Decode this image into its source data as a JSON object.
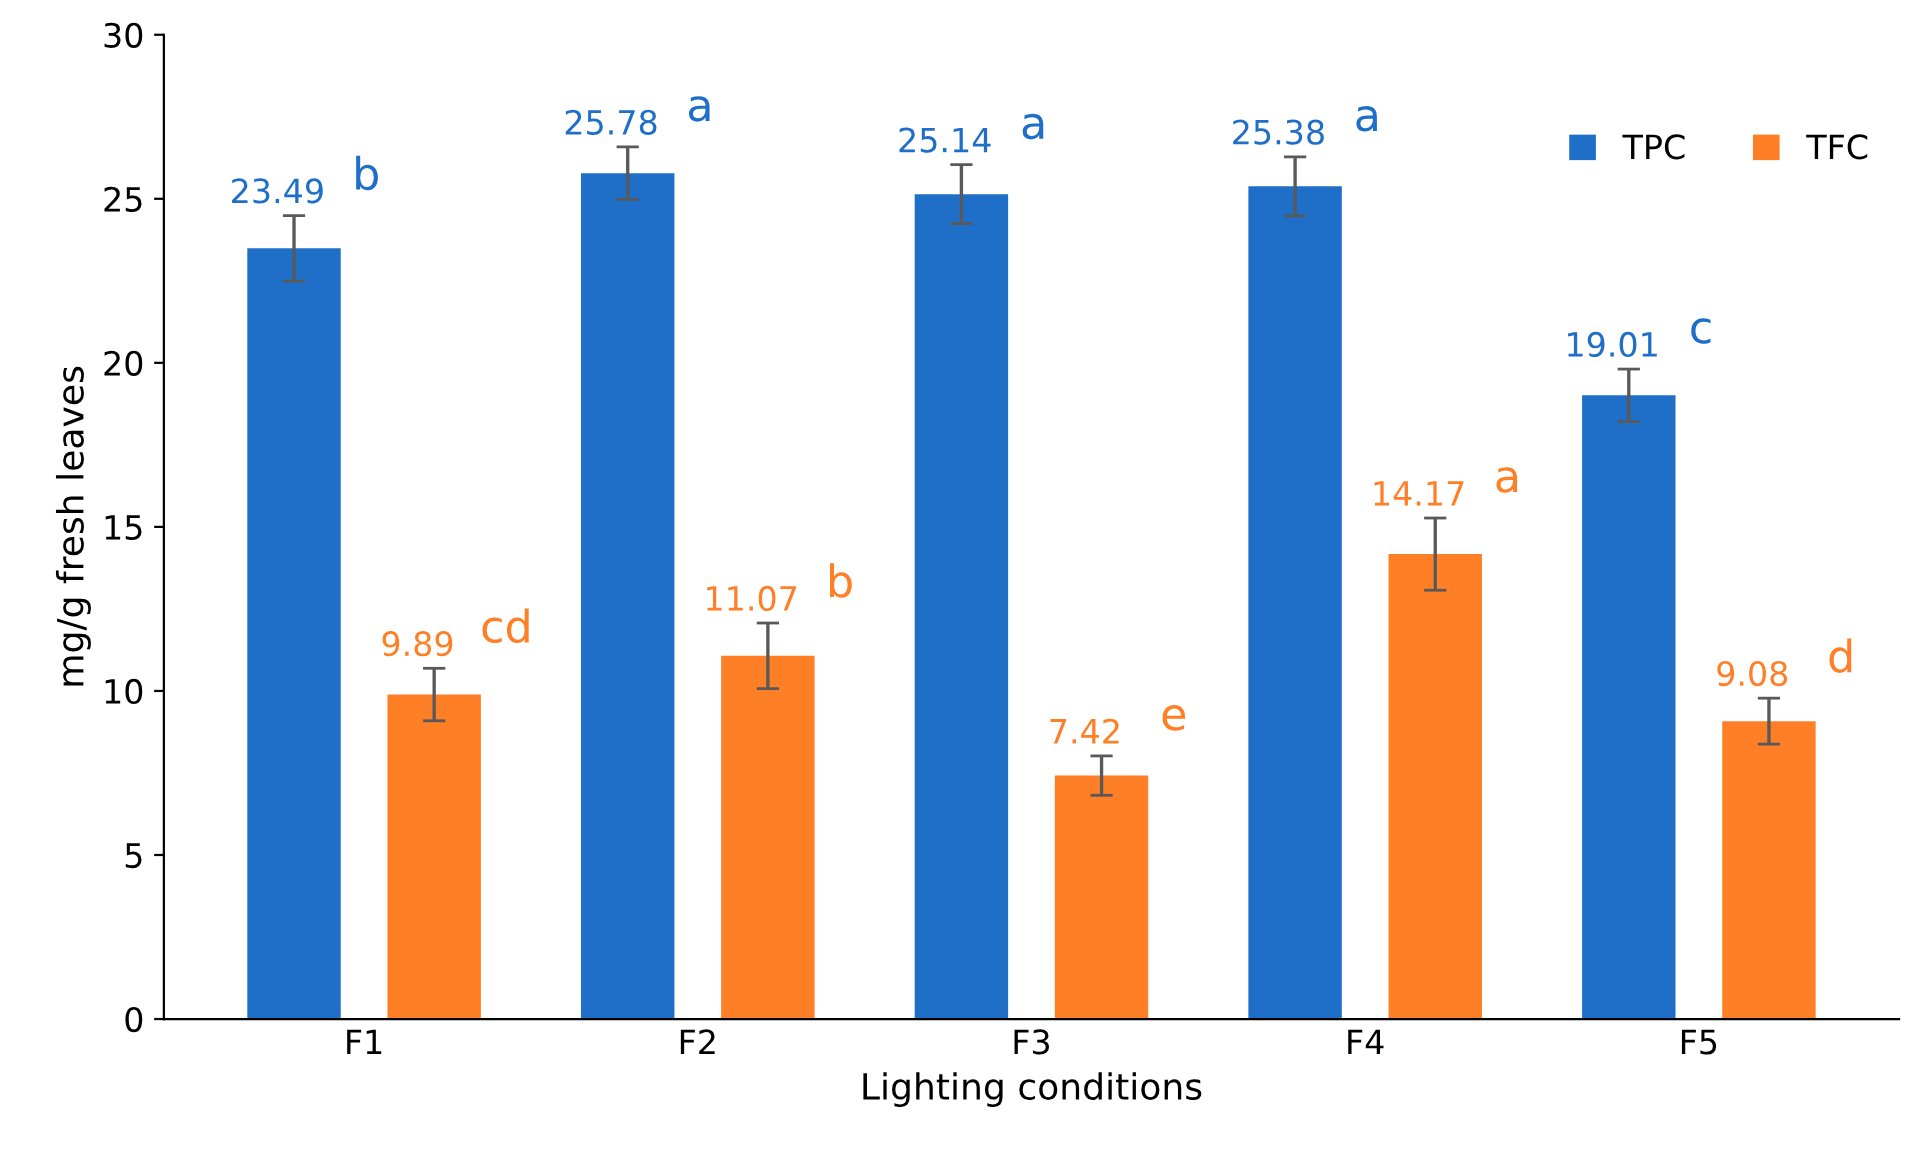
{
  "chart_data": {
    "type": "bar",
    "xlabel": "Lighting conditions",
    "ylabel": "mg/g fresh leaves",
    "categories": [
      "F1",
      "F2",
      "F3",
      "F4",
      "F5"
    ],
    "series": [
      {
        "name": "TPC",
        "color": "#1f6fc8",
        "values": [
          23.49,
          25.78,
          25.14,
          25.38,
          19.01
        ],
        "errors": [
          1.0,
          0.8,
          0.9,
          0.9,
          0.8
        ]
      },
      {
        "name": "TFC",
        "color": "#ff7f27",
        "values": [
          9.89,
          11.07,
          7.42,
          14.17,
          9.08
        ],
        "errors": [
          0.8,
          1.0,
          0.6,
          1.1,
          0.7
        ]
      }
    ],
    "data_labels": true,
    "annotations": [
      "b",
      "a",
      "a",
      "a",
      "c",
      "cd",
      "b",
      "e",
      "a",
      "d"
    ],
    "ylim": [
      0,
      30
    ],
    "yticks": [
      0,
      5,
      10,
      15,
      20,
      25,
      30
    ],
    "grid": false,
    "legend": "top right"
  }
}
